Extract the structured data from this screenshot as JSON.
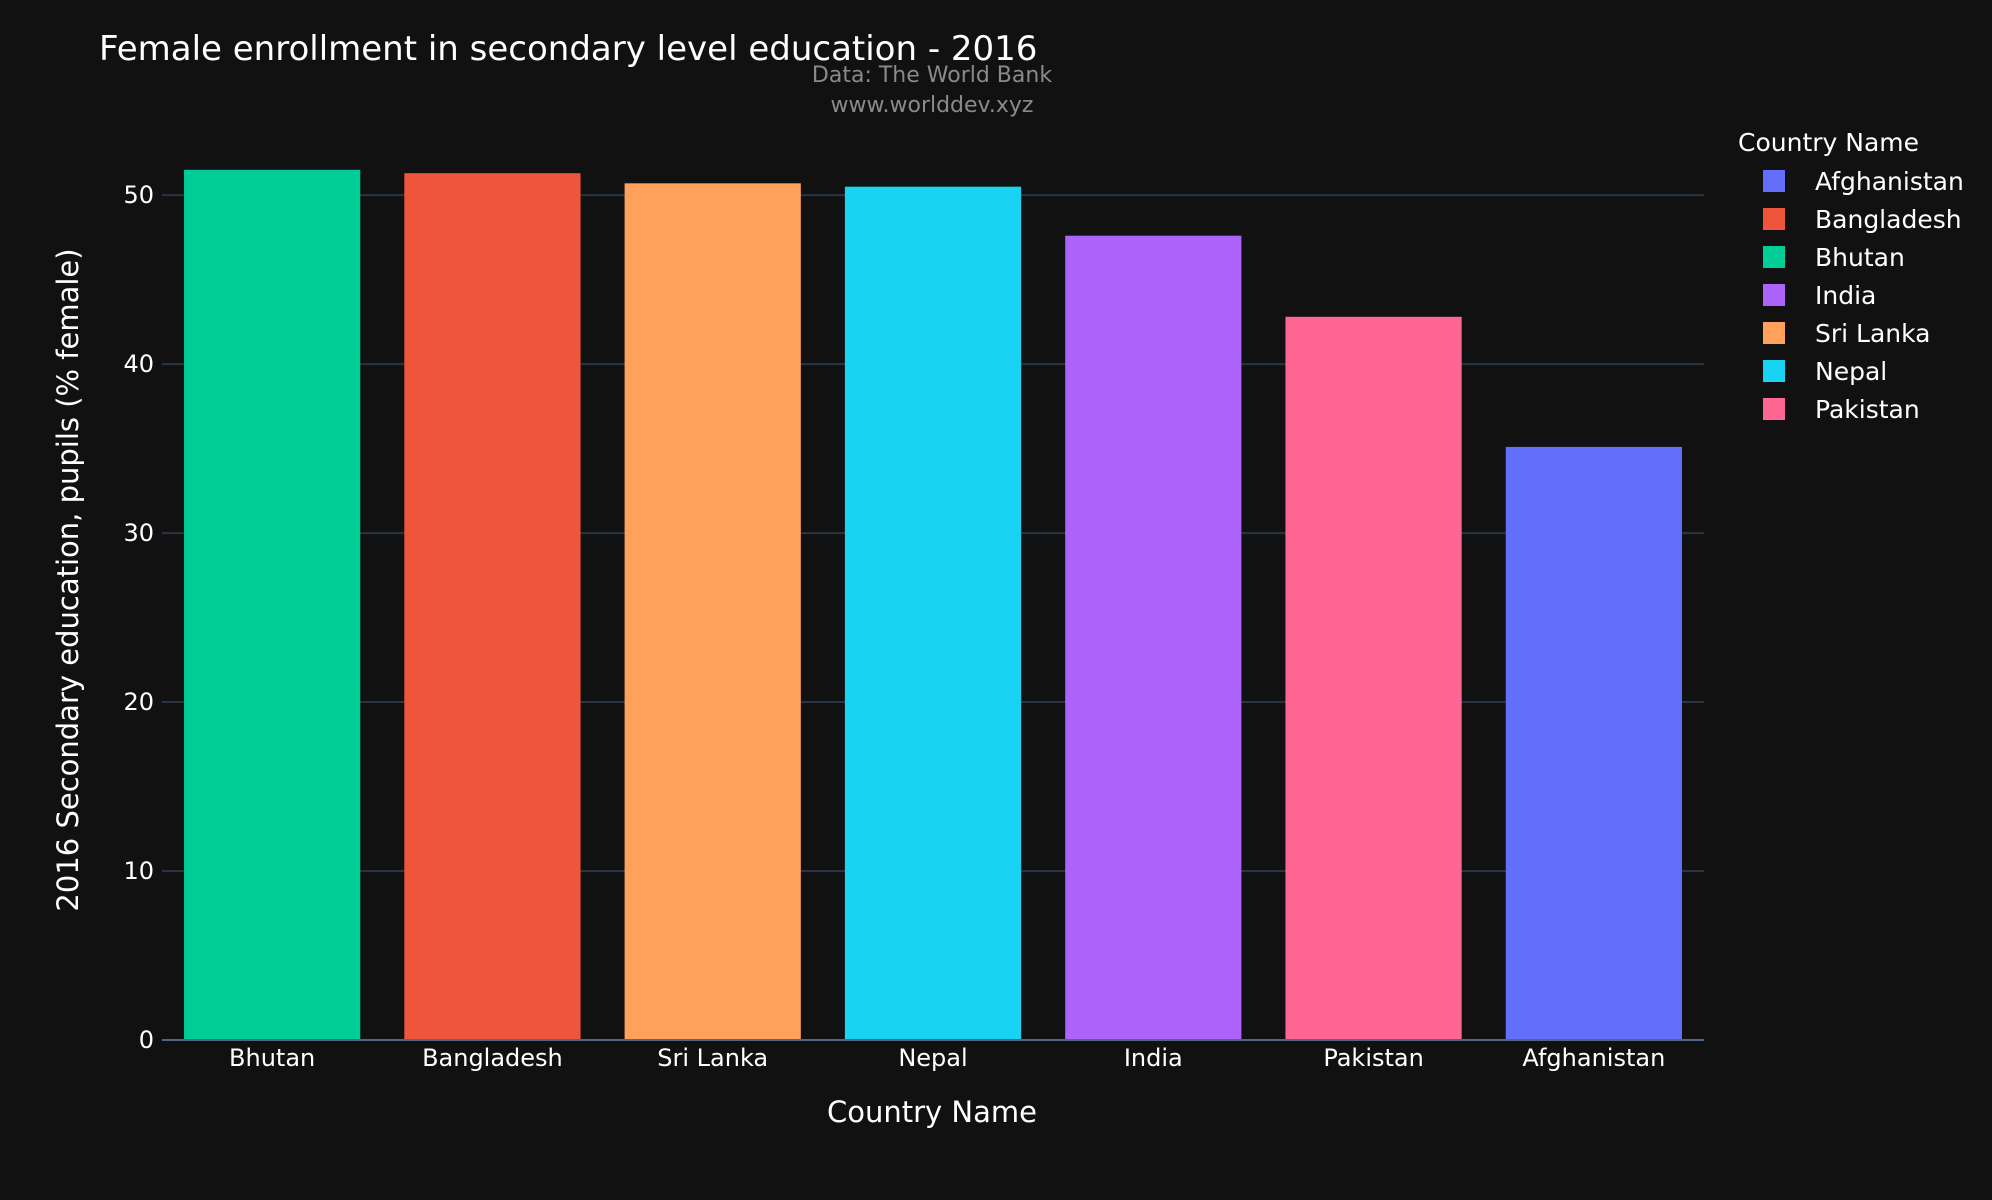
{
  "chart_data": {
    "type": "bar",
    "title": "Female enrollment in secondary level education - 2016",
    "subtitle": [
      "Data: The World Bank",
      "www.worlddev.xyz"
    ],
    "xlabel": "Country Name",
    "ylabel": "2016 Secondary education, pupils (% female)",
    "categories": [
      "Bhutan",
      "Bangladesh",
      "Sri Lanka",
      "Nepal",
      "India",
      "Pakistan",
      "Afghanistan"
    ],
    "values": [
      51.5,
      51.3,
      50.7,
      50.5,
      47.6,
      42.8,
      35.1
    ],
    "colors": [
      "#00cc96",
      "#ef553b",
      "#ffa15a",
      "#19d3f3",
      "#ab63fa",
      "#ff6692",
      "#636efa"
    ],
    "ylim": [
      0,
      53.5
    ],
    "yticks": [
      0,
      10,
      20,
      30,
      40,
      50
    ],
    "grid": true,
    "legend": {
      "title": "Country Name",
      "placement": "right",
      "items": [
        {
          "name": "Afghanistan",
          "color": "#636efa"
        },
        {
          "name": "Bangladesh",
          "color": "#ef553b"
        },
        {
          "name": "Bhutan",
          "color": "#00cc96"
        },
        {
          "name": "India",
          "color": "#ab63fa"
        },
        {
          "name": "Sri Lanka",
          "color": "#ffa15a"
        },
        {
          "name": "Nepal",
          "color": "#19d3f3"
        },
        {
          "name": "Pakistan",
          "color": "#ff6692"
        }
      ]
    }
  }
}
